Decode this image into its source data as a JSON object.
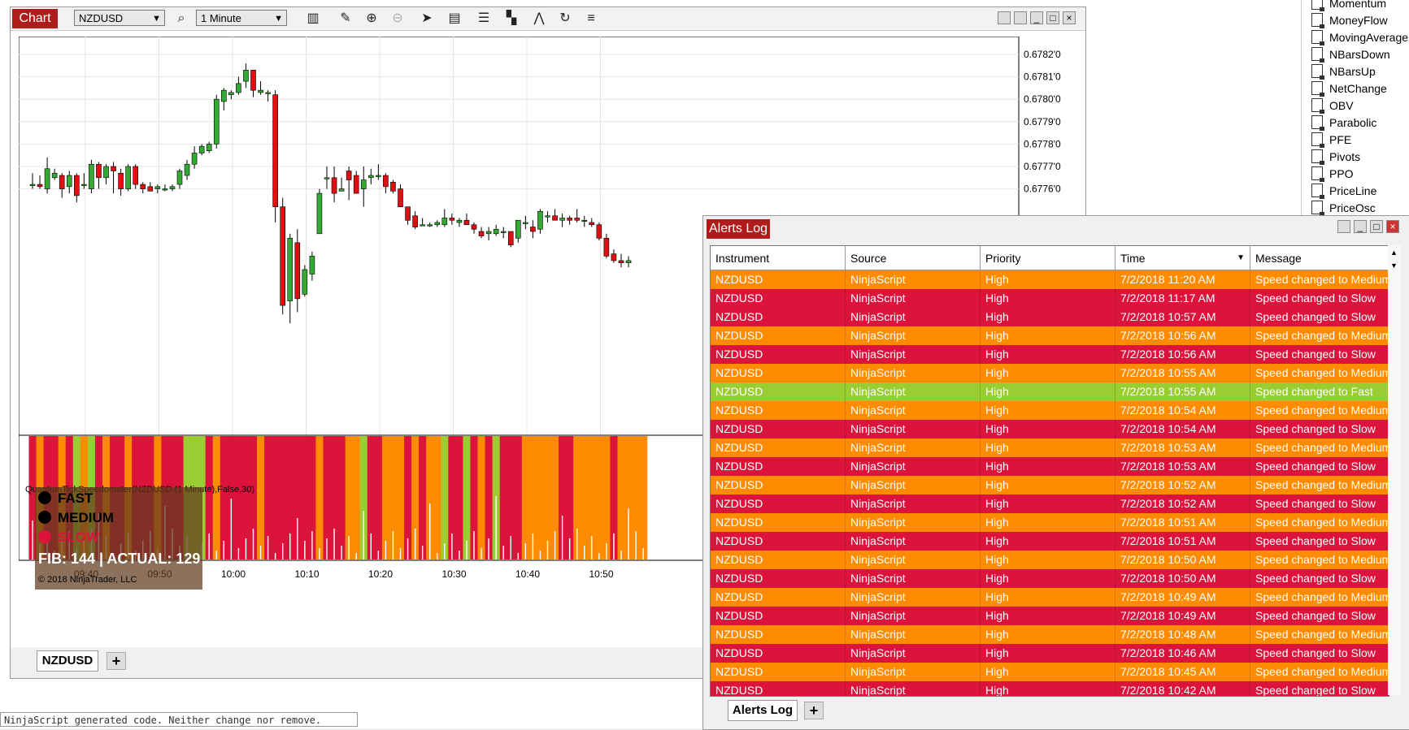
{
  "colors": {
    "fast": "#9acd32",
    "medium": "#ff8c00",
    "slow": "#dc143c",
    "bull": "#33aa33",
    "bear": "#dd1111",
    "chart_tab": "#b01c1c"
  },
  "editor": {
    "footer_text": "NinjaScript generated code. Neither change nor remove."
  },
  "right_panel": {
    "items": [
      "Momentum",
      "MoneyFlow",
      "MovingAverage",
      "NBarsDown",
      "NBarsUp",
      "NetChange",
      "OBV",
      "Parabolic",
      "PFE",
      "Pivots",
      "PPO",
      "PriceLine",
      "PriceOsc"
    ]
  },
  "chart": {
    "tab_label": "Chart",
    "instrument": "NZDUSD",
    "interval": "1 Minute",
    "toolbar_icons": [
      "search-icon",
      "bar-style-icon",
      "pencil-icon",
      "zoom-in-icon",
      "zoom-out-icon",
      "pointer-icon",
      "data-box-icon",
      "order-icon",
      "properties-icon",
      "strategy-icon",
      "refresh-icon",
      "list-icon"
    ],
    "price_labels": [
      "0.6782'0",
      "0.6781'0",
      "0.6780'0",
      "0.6779'0",
      "0.6778'0",
      "0.6777'0",
      "0.6776'0"
    ],
    "time_labels": [
      "09:40",
      "09:50",
      "10:00",
      "10:10",
      "10:20",
      "10:30",
      "10:40",
      "10:50"
    ],
    "indicator_title": "QuantumTickSpeedometer(NZDUSD (1 Minute),False,30)",
    "speed_legend": {
      "fast": "FAST",
      "medium": "MEDIUM",
      "slow": "SLOW"
    },
    "fib_text": "FIB: 144 | ACTUAL: 129",
    "copyright": "© 2018 NinjaTrader, LLC",
    "bottom_tab": "NZDUSD",
    "add_tab": "+"
  },
  "alerts": {
    "title": "Alerts Log",
    "bottom_tab": "Alerts Log",
    "add_tab": "+",
    "columns": [
      "Instrument",
      "Source",
      "Priority",
      "Time",
      "Message"
    ],
    "rows": [
      {
        "instrument": "NZDUSD",
        "source": "NinjaScript",
        "priority": "High",
        "time": "7/2/2018 11:20 AM",
        "message": "Speed changed to Medium",
        "speed": "medium"
      },
      {
        "instrument": "NZDUSD",
        "source": "NinjaScript",
        "priority": "High",
        "time": "7/2/2018 11:17 AM",
        "message": "Speed changed to Slow",
        "speed": "slow"
      },
      {
        "instrument": "NZDUSD",
        "source": "NinjaScript",
        "priority": "High",
        "time": "7/2/2018 10:57 AM",
        "message": "Speed changed to Slow",
        "speed": "slow"
      },
      {
        "instrument": "NZDUSD",
        "source": "NinjaScript",
        "priority": "High",
        "time": "7/2/2018 10:56 AM",
        "message": "Speed changed to Medium",
        "speed": "medium"
      },
      {
        "instrument": "NZDUSD",
        "source": "NinjaScript",
        "priority": "High",
        "time": "7/2/2018 10:56 AM",
        "message": "Speed changed to Slow",
        "speed": "slow"
      },
      {
        "instrument": "NZDUSD",
        "source": "NinjaScript",
        "priority": "High",
        "time": "7/2/2018 10:55 AM",
        "message": "Speed changed to Medium",
        "speed": "medium"
      },
      {
        "instrument": "NZDUSD",
        "source": "NinjaScript",
        "priority": "High",
        "time": "7/2/2018 10:55 AM",
        "message": "Speed changed to Fast",
        "speed": "fast"
      },
      {
        "instrument": "NZDUSD",
        "source": "NinjaScript",
        "priority": "High",
        "time": "7/2/2018 10:54 AM",
        "message": "Speed changed to Medium",
        "speed": "medium"
      },
      {
        "instrument": "NZDUSD",
        "source": "NinjaScript",
        "priority": "High",
        "time": "7/2/2018 10:54 AM",
        "message": "Speed changed to Slow",
        "speed": "slow"
      },
      {
        "instrument": "NZDUSD",
        "source": "NinjaScript",
        "priority": "High",
        "time": "7/2/2018 10:53 AM",
        "message": "Speed changed to Medium",
        "speed": "medium"
      },
      {
        "instrument": "NZDUSD",
        "source": "NinjaScript",
        "priority": "High",
        "time": "7/2/2018 10:53 AM",
        "message": "Speed changed to Slow",
        "speed": "slow"
      },
      {
        "instrument": "NZDUSD",
        "source": "NinjaScript",
        "priority": "High",
        "time": "7/2/2018 10:52 AM",
        "message": "Speed changed to Medium",
        "speed": "medium"
      },
      {
        "instrument": "NZDUSD",
        "source": "NinjaScript",
        "priority": "High",
        "time": "7/2/2018 10:52 AM",
        "message": "Speed changed to Slow",
        "speed": "slow"
      },
      {
        "instrument": "NZDUSD",
        "source": "NinjaScript",
        "priority": "High",
        "time": "7/2/2018 10:51 AM",
        "message": "Speed changed to Medium",
        "speed": "medium"
      },
      {
        "instrument": "NZDUSD",
        "source": "NinjaScript",
        "priority": "High",
        "time": "7/2/2018 10:51 AM",
        "message": "Speed changed to Slow",
        "speed": "slow"
      },
      {
        "instrument": "NZDUSD",
        "source": "NinjaScript",
        "priority": "High",
        "time": "7/2/2018 10:50 AM",
        "message": "Speed changed to Medium",
        "speed": "medium"
      },
      {
        "instrument": "NZDUSD",
        "source": "NinjaScript",
        "priority": "High",
        "time": "7/2/2018 10:50 AM",
        "message": "Speed changed to Slow",
        "speed": "slow"
      },
      {
        "instrument": "NZDUSD",
        "source": "NinjaScript",
        "priority": "High",
        "time": "7/2/2018 10:49 AM",
        "message": "Speed changed to Medium",
        "speed": "medium"
      },
      {
        "instrument": "NZDUSD",
        "source": "NinjaScript",
        "priority": "High",
        "time": "7/2/2018 10:49 AM",
        "message": "Speed changed to Slow",
        "speed": "slow"
      },
      {
        "instrument": "NZDUSD",
        "source": "NinjaScript",
        "priority": "High",
        "time": "7/2/2018 10:48 AM",
        "message": "Speed changed to Medium",
        "speed": "medium"
      },
      {
        "instrument": "NZDUSD",
        "source": "NinjaScript",
        "priority": "High",
        "time": "7/2/2018 10:46 AM",
        "message": "Speed changed to Slow",
        "speed": "slow"
      },
      {
        "instrument": "NZDUSD",
        "source": "NinjaScript",
        "priority": "High",
        "time": "7/2/2018 10:45 AM",
        "message": "Speed changed to Medium",
        "speed": "medium"
      },
      {
        "instrument": "NZDUSD",
        "source": "NinjaScript",
        "priority": "High",
        "time": "7/2/2018 10:42 AM",
        "message": "Speed changed to Slow",
        "speed": "slow"
      }
    ]
  }
}
